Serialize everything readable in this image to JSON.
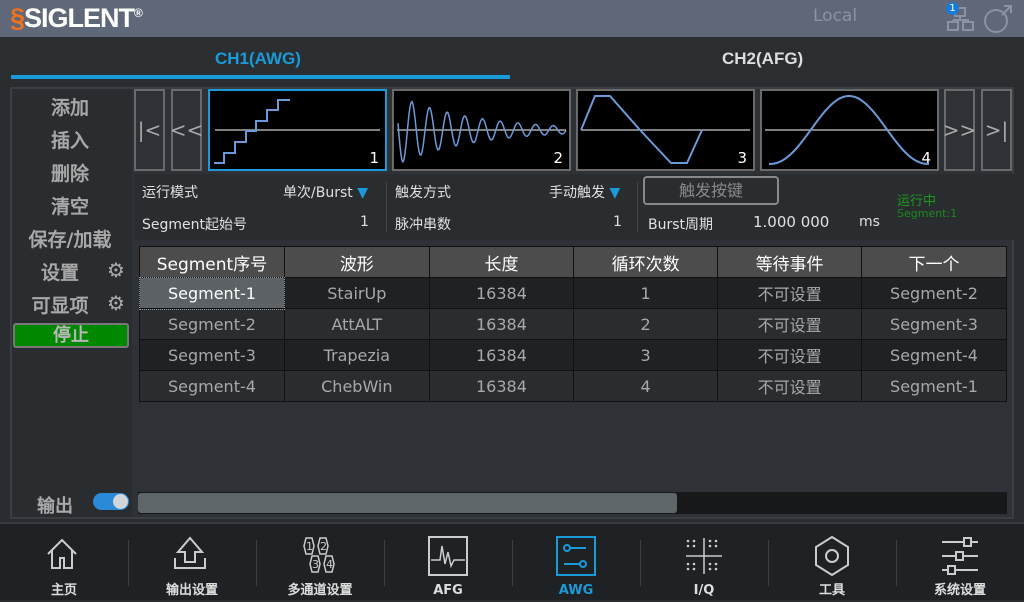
{
  "header": {
    "brand": "SIGLENT",
    "local": "Local",
    "network_badge": "1"
  },
  "tabs": [
    {
      "label": "CH1(AWG)",
      "active": true
    },
    {
      "label": "CH2(AFG)",
      "active": false
    }
  ],
  "sidebar": {
    "items": [
      "添加",
      "插入",
      "删除",
      "清空",
      "保存/加载",
      "设置",
      "可显项"
    ],
    "stop_label": "停止",
    "output_label": "输出",
    "output_on": true
  },
  "thumbnails": [
    {
      "num": "1"
    },
    {
      "num": "2"
    },
    {
      "num": "3"
    },
    {
      "num": "4"
    }
  ],
  "nav": {
    "first": "|<",
    "prev": "<<",
    "next": ">>",
    "last": ">|"
  },
  "params": {
    "run_mode_label": "运行模式",
    "run_mode_value": "单次/Burst",
    "start_label": "Segment起始号",
    "start_value": "1",
    "trigger_label": "触发方式",
    "trigger_value": "手动触发",
    "pulse_label": "脉冲串数",
    "pulse_value": "1",
    "trigger_button": "触发按键",
    "burst_label": "Burst周期",
    "burst_value": "1.000 000",
    "burst_unit": "ms",
    "status": "运行中",
    "status_segment": "Segment:1"
  },
  "table": {
    "headers": [
      "Segment序号",
      "波形",
      "长度",
      "循环次数",
      "等待事件",
      "下一个"
    ],
    "rows": [
      [
        "Segment-1",
        "StairUp",
        "16384",
        "1",
        "不可设置",
        "Segment-2"
      ],
      [
        "Segment-2",
        "AttALT",
        "16384",
        "2",
        "不可设置",
        "Segment-3"
      ],
      [
        "Segment-3",
        "Trapezia",
        "16384",
        "3",
        "不可设置",
        "Segment-4"
      ],
      [
        "Segment-4",
        "ChebWin",
        "16384",
        "4",
        "不可设置",
        "Segment-1"
      ]
    ]
  },
  "scroll_fraction": 0.62,
  "bottom_nav": [
    {
      "label": "主页",
      "icon": "home-icon"
    },
    {
      "label": "输出设置",
      "icon": "output-icon"
    },
    {
      "label": "多通道设置",
      "icon": "multichannel-icon"
    },
    {
      "label": "AFG",
      "icon": "afg-icon"
    },
    {
      "label": "AWG",
      "icon": "awg-icon",
      "active": true
    },
    {
      "label": "I/Q",
      "icon": "iq-icon"
    },
    {
      "label": "工具",
      "icon": "tools-icon"
    },
    {
      "label": "系统设置",
      "icon": "settings-icon"
    }
  ],
  "colors": {
    "accent": "#1a9ad8",
    "stop_green": "#008800",
    "status_green": "#1a9a1a",
    "wave": "#6a9ad8"
  }
}
